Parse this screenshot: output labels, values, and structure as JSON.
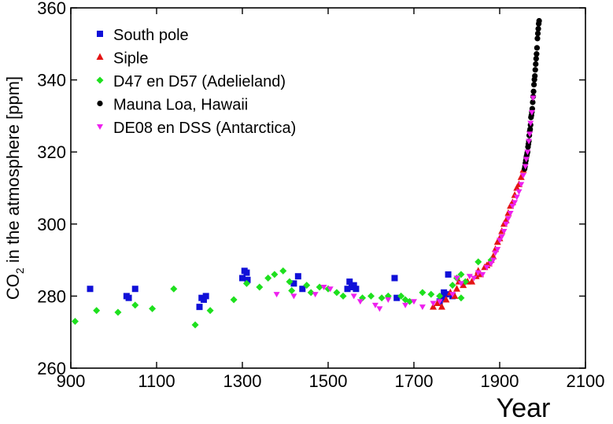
{
  "chart_data": {
    "type": "scatter",
    "title": "",
    "xlabel": "Year",
    "ylabel_main": "CO",
    "ylabel_sub": "2",
    "ylabel_rest": " in the atmosphere [ppm]",
    "xlim": [
      900,
      2100
    ],
    "ylim": [
      260,
      360
    ],
    "xticks": [
      900,
      1100,
      1300,
      1500,
      1700,
      1900,
      2100
    ],
    "yticks": [
      260,
      280,
      300,
      320,
      340,
      360
    ],
    "grid": false,
    "legend_position": "top-left",
    "series": [
      {
        "name": "South pole",
        "marker": "square",
        "color": "#1010d8",
        "points": [
          [
            945,
            282
          ],
          [
            1030,
            280
          ],
          [
            1035,
            279.5
          ],
          [
            1050,
            282
          ],
          [
            1200,
            277
          ],
          [
            1205,
            279.5
          ],
          [
            1210,
            279
          ],
          [
            1215,
            280
          ],
          [
            1300,
            285
          ],
          [
            1305,
            287
          ],
          [
            1310,
            286.5
          ],
          [
            1312,
            284.5
          ],
          [
            1420,
            283.5
          ],
          [
            1430,
            285.5
          ],
          [
            1440,
            282
          ],
          [
            1545,
            282
          ],
          [
            1550,
            284
          ],
          [
            1555,
            282.5
          ],
          [
            1560,
            283
          ],
          [
            1565,
            282
          ],
          [
            1655,
            285
          ],
          [
            1660,
            279.5
          ],
          [
            1760,
            278.5
          ],
          [
            1765,
            279.5
          ],
          [
            1770,
            281
          ],
          [
            1775,
            280.5
          ],
          [
            1780,
            286
          ],
          [
            1790,
            280
          ]
        ]
      },
      {
        "name": "Siple",
        "marker": "triangle-up",
        "color": "#e41414",
        "points": [
          [
            1745,
            277
          ],
          [
            1755,
            278
          ],
          [
            1765,
            277
          ],
          [
            1775,
            279
          ],
          [
            1785,
            281
          ],
          [
            1795,
            280
          ],
          [
            1800,
            282
          ],
          [
            1805,
            284
          ],
          [
            1815,
            283
          ],
          [
            1825,
            284
          ],
          [
            1835,
            284
          ],
          [
            1845,
            285.5
          ],
          [
            1850,
            287
          ],
          [
            1855,
            286
          ],
          [
            1865,
            288
          ],
          [
            1870,
            288.5
          ],
          [
            1875,
            289
          ],
          [
            1880,
            290
          ],
          [
            1885,
            291
          ],
          [
            1890,
            293
          ],
          [
            1895,
            295
          ],
          [
            1900,
            296
          ],
          [
            1905,
            298
          ],
          [
            1910,
            300
          ],
          [
            1915,
            301
          ],
          [
            1920,
            303
          ],
          [
            1925,
            305
          ],
          [
            1930,
            306
          ],
          [
            1935,
            308
          ],
          [
            1940,
            310
          ],
          [
            1945,
            311
          ],
          [
            1950,
            313
          ],
          [
            1955,
            315
          ]
        ]
      },
      {
        "name": "D47 en D57 (Adelieland)",
        "marker": "diamond",
        "color": "#1ee01e",
        "points": [
          [
            910,
            273
          ],
          [
            960,
            276
          ],
          [
            1010,
            275.5
          ],
          [
            1050,
            277.5
          ],
          [
            1090,
            276.5
          ],
          [
            1140,
            282
          ],
          [
            1190,
            272
          ],
          [
            1225,
            276
          ],
          [
            1280,
            279
          ],
          [
            1310,
            283.5
          ],
          [
            1340,
            282.5
          ],
          [
            1360,
            285
          ],
          [
            1375,
            286
          ],
          [
            1395,
            287
          ],
          [
            1410,
            284
          ],
          [
            1415,
            281.5
          ],
          [
            1450,
            283
          ],
          [
            1460,
            281
          ],
          [
            1480,
            282.5
          ],
          [
            1500,
            282
          ],
          [
            1520,
            281
          ],
          [
            1535,
            280
          ],
          [
            1580,
            279.5
          ],
          [
            1600,
            280
          ],
          [
            1625,
            279.5
          ],
          [
            1640,
            280
          ],
          [
            1670,
            280
          ],
          [
            1680,
            279
          ],
          [
            1690,
            278.5
          ],
          [
            1720,
            281
          ],
          [
            1740,
            280.5
          ],
          [
            1760,
            280
          ],
          [
            1790,
            283
          ],
          [
            1800,
            285
          ],
          [
            1810,
            286
          ],
          [
            1820,
            284
          ],
          [
            1850,
            289.5
          ],
          [
            1880,
            290
          ],
          [
            1810,
            279.5
          ]
        ]
      },
      {
        "name": "Mauna Loa, Hawaii",
        "marker": "circle",
        "color": "#000000",
        "points": [
          [
            1958,
            315.3
          ],
          [
            1959,
            316
          ],
          [
            1960,
            316.9
          ],
          [
            1961,
            317.6
          ],
          [
            1962,
            318.5
          ],
          [
            1963,
            319
          ],
          [
            1964,
            319.6
          ],
          [
            1965,
            320
          ],
          [
            1966,
            321.4
          ],
          [
            1967,
            322.2
          ],
          [
            1968,
            323
          ],
          [
            1969,
            324.6
          ],
          [
            1970,
            325.7
          ],
          [
            1971,
            326.3
          ],
          [
            1972,
            327.5
          ],
          [
            1973,
            329.6
          ],
          [
            1974,
            330.2
          ],
          [
            1975,
            331.1
          ],
          [
            1976,
            332
          ],
          [
            1977,
            333.8
          ],
          [
            1978,
            335.4
          ],
          [
            1979,
            336.8
          ],
          [
            1980,
            338.7
          ],
          [
            1981,
            340.1
          ],
          [
            1982,
            341.1
          ],
          [
            1983,
            342.8
          ],
          [
            1984,
            344.4
          ],
          [
            1985,
            345.9
          ],
          [
            1986,
            347.2
          ],
          [
            1987,
            348.9
          ],
          [
            1988,
            351.5
          ],
          [
            1989,
            352.9
          ],
          [
            1990,
            354.2
          ],
          [
            1991,
            355.6
          ],
          [
            1992,
            356.4
          ]
        ]
      },
      {
        "name": "DE08 en DSS (Antarctica)",
        "marker": "triangle-down",
        "color": "#ee20ee",
        "points": [
          [
            1380,
            280.5
          ],
          [
            1420,
            280
          ],
          [
            1470,
            280.5
          ],
          [
            1490,
            282.5
          ],
          [
            1505,
            282
          ],
          [
            1560,
            280
          ],
          [
            1575,
            278.5
          ],
          [
            1610,
            277.5
          ],
          [
            1620,
            276.5
          ],
          [
            1640,
            279
          ],
          [
            1680,
            277.5
          ],
          [
            1700,
            278.5
          ],
          [
            1720,
            277
          ],
          [
            1745,
            278
          ],
          [
            1760,
            278.5
          ],
          [
            1790,
            280.5
          ],
          [
            1800,
            285
          ],
          [
            1810,
            283.5
          ],
          [
            1830,
            285.5
          ],
          [
            1840,
            285
          ],
          [
            1850,
            286.5
          ],
          [
            1860,
            286
          ],
          [
            1870,
            288
          ],
          [
            1880,
            289
          ],
          [
            1885,
            290
          ],
          [
            1890,
            292
          ],
          [
            1895,
            293
          ],
          [
            1900,
            295.5
          ],
          [
            1905,
            296.5
          ],
          [
            1910,
            298
          ],
          [
            1915,
            300
          ],
          [
            1920,
            301.5
          ],
          [
            1925,
            303
          ],
          [
            1930,
            305
          ],
          [
            1935,
            306
          ],
          [
            1940,
            307.5
          ],
          [
            1945,
            309
          ],
          [
            1950,
            311
          ],
          [
            1955,
            313.5
          ],
          [
            1960,
            316
          ],
          [
            1962,
            318
          ],
          [
            1965,
            320
          ],
          [
            1968,
            323
          ],
          [
            1970,
            325
          ],
          [
            1972,
            328
          ],
          [
            1975,
            331
          ],
          [
            1978,
            335
          ]
        ]
      }
    ]
  }
}
